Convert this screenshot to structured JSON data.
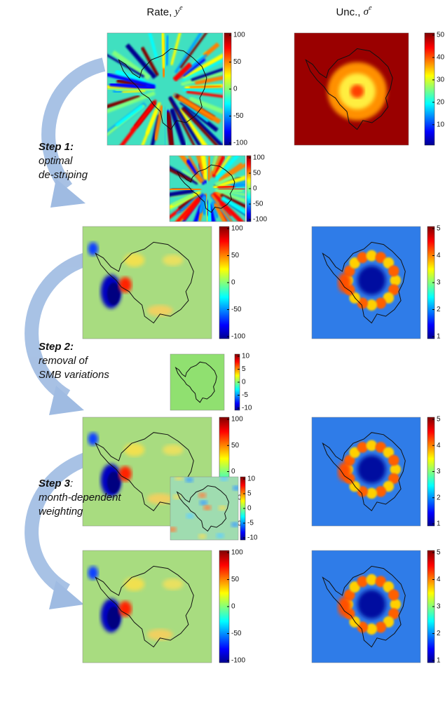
{
  "headers": [
    {
      "text": "Rate, ",
      "symbol": "y",
      "sup": "e"
    },
    {
      "text": "Unc., ",
      "symbol": "σ",
      "sup": "e"
    }
  ],
  "steps": [
    {
      "heading": "Step 1:",
      "lines": [
        "optimal",
        "de-striping"
      ]
    },
    {
      "heading": "Step 2:",
      "lines": [
        "removal of",
        "SMB variations"
      ]
    },
    {
      "heading": "Step 3",
      "suffix": ":",
      "lines": [
        "month-dependent",
        "weighting"
      ]
    }
  ],
  "panels": [
    {
      "ticks": [
        100,
        50,
        0,
        -50,
        -100
      ]
    },
    {
      "ticks": [
        50,
        40,
        30,
        20,
        10
      ]
    },
    {
      "ticks": [
        100,
        50,
        0,
        -50,
        -100
      ]
    },
    {
      "ticks": [
        100,
        50,
        0,
        -50,
        -100
      ]
    },
    {
      "ticks": [
        5,
        4,
        3,
        2,
        1
      ]
    },
    {
      "ticks": [
        10,
        5,
        0,
        -5,
        -10
      ]
    },
    {
      "ticks": [
        100,
        50,
        0,
        -50,
        -100
      ]
    },
    {
      "ticks": [
        5,
        4,
        3,
        2,
        1
      ]
    },
    {
      "ticks": [
        10,
        5,
        0,
        -5,
        -10
      ]
    },
    {
      "ticks": [
        100,
        50,
        0,
        -50,
        -100
      ]
    },
    {
      "ticks": [
        5,
        4,
        3,
        2,
        1
      ]
    }
  ]
}
